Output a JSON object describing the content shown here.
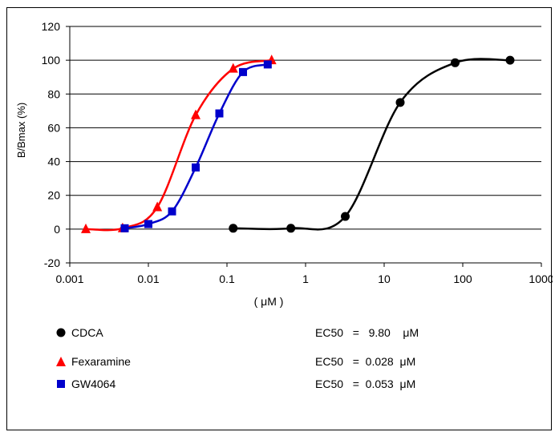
{
  "chart_data": {
    "type": "scatter",
    "ylabel": "B/Bmax (%)",
    "xlabel": "( μM )",
    "x_scale": "log",
    "xlim": [
      0.001,
      1000
    ],
    "ylim": [
      -20,
      120
    ],
    "x_ticks": [
      "0.001",
      "0.01",
      "0.1",
      "1",
      "10",
      "100",
      "1000"
    ],
    "y_ticks": [
      "-20",
      "0",
      "20",
      "40",
      "60",
      "80",
      "100",
      "120"
    ],
    "grid": "horizontal",
    "series": [
      {
        "name": "CDCA",
        "color": "#000000",
        "marker": "circle",
        "points": [
          {
            "x": 0.12,
            "y": 0.5
          },
          {
            "x": 0.65,
            "y": 0.5
          },
          {
            "x": 3.2,
            "y": 7.5
          },
          {
            "x": 16,
            "y": 75
          },
          {
            "x": 80,
            "y": 98.5
          },
          {
            "x": 400,
            "y": 100
          }
        ],
        "ec50": "9.80"
      },
      {
        "name": "Fexaramine",
        "color": "#ff0000",
        "marker": "triangle",
        "points": [
          {
            "x": 0.0016,
            "y": 0
          },
          {
            "x": 0.0047,
            "y": 0.5
          },
          {
            "x": 0.013,
            "y": 13
          },
          {
            "x": 0.04,
            "y": 67.5
          },
          {
            "x": 0.12,
            "y": 95
          },
          {
            "x": 0.37,
            "y": 100
          }
        ],
        "ec50": "0.028"
      },
      {
        "name": "GW4064",
        "color": "#0000cc",
        "marker": "square",
        "points": [
          {
            "x": 0.005,
            "y": 0.5
          },
          {
            "x": 0.01,
            "y": 3
          },
          {
            "x": 0.02,
            "y": 10.5
          },
          {
            "x": 0.04,
            "y": 36.5
          },
          {
            "x": 0.08,
            "y": 68.5
          },
          {
            "x": 0.16,
            "y": 93
          },
          {
            "x": 0.33,
            "y": 97.5
          }
        ],
        "ec50": "0.053"
      }
    ]
  },
  "legend": {
    "entries": [
      {
        "name": "CDCA",
        "ec50_label": "EC50",
        "eq": "=",
        "value": "9.80",
        "unit": "μM"
      },
      {
        "name": "Fexaramine",
        "ec50_label": "EC50",
        "eq": "=",
        "value": "0.028",
        "unit": "μM"
      },
      {
        "name": "GW4064",
        "ec50_label": "EC50",
        "eq": "=",
        "value": "0.053",
        "unit": "μM"
      }
    ]
  }
}
